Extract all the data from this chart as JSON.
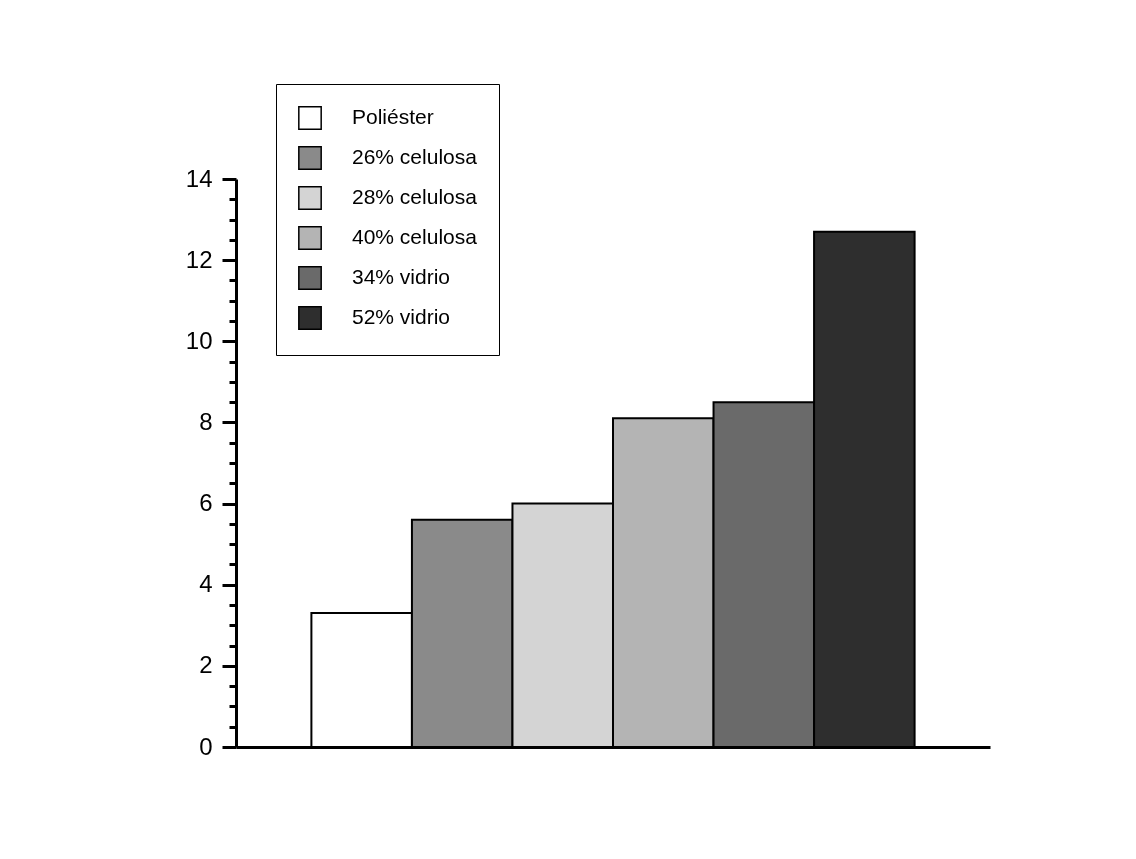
{
  "chart_data": {
    "type": "bar",
    "categories": [
      null,
      null,
      null,
      null,
      null,
      null
    ],
    "series": [
      {
        "name": "Poliéster",
        "color": "#ffffff",
        "values": [
          3.3,
          null,
          null,
          null,
          null,
          null
        ]
      },
      {
        "name": "26% celulosa",
        "color": "#8a8a8a",
        "values": [
          null,
          5.6,
          null,
          null,
          null,
          null
        ]
      },
      {
        "name": "28% celulosa",
        "color": "#d4d4d4",
        "values": [
          null,
          null,
          6.0,
          null,
          null,
          null
        ]
      },
      {
        "name": "40% celulosa",
        "color": "#b4b4b4",
        "values": [
          null,
          null,
          null,
          8.1,
          null,
          null
        ]
      },
      {
        "name": "34% vidrio",
        "color": "#6a6a6a",
        "values": [
          null,
          null,
          null,
          null,
          8.5,
          null
        ]
      },
      {
        "name": "52% vidrio",
        "color": "#2e2e2e",
        "values": [
          null,
          null,
          null,
          null,
          null,
          12.7
        ]
      }
    ],
    "ylim": [
      0,
      14
    ],
    "yticks": [
      0,
      {
        "value": 0.5,
        "label": null
      },
      {
        "value": 1,
        "label": null
      },
      {
        "value": 1.5,
        "label": null
      },
      2,
      {
        "value": 2.5,
        "label": null
      },
      {
        "value": 3,
        "label": null
      },
      {
        "value": 3.5,
        "label": null
      },
      4,
      {
        "value": 4.5,
        "label": null
      },
      {
        "value": 5,
        "label": null
      },
      {
        "value": 5.5,
        "label": null
      },
      6,
      {
        "value": 6.5,
        "label": null
      },
      {
        "value": 7,
        "label": null
      },
      {
        "value": 7.5,
        "label": null
      },
      8,
      {
        "value": 8.5,
        "label": null
      },
      {
        "value": 9,
        "label": null
      },
      {
        "value": 9.5,
        "label": null
      },
      10,
      {
        "value": 10.5,
        "label": null
      },
      {
        "value": 11,
        "label": null
      },
      {
        "value": 11.5,
        "label": null
      },
      12,
      {
        "value": 12.5,
        "label": null
      },
      {
        "value": 13,
        "label": null
      },
      {
        "value": 13.5,
        "label": null
      },
      14
    ],
    "grid": false,
    "legend": "top left"
  }
}
